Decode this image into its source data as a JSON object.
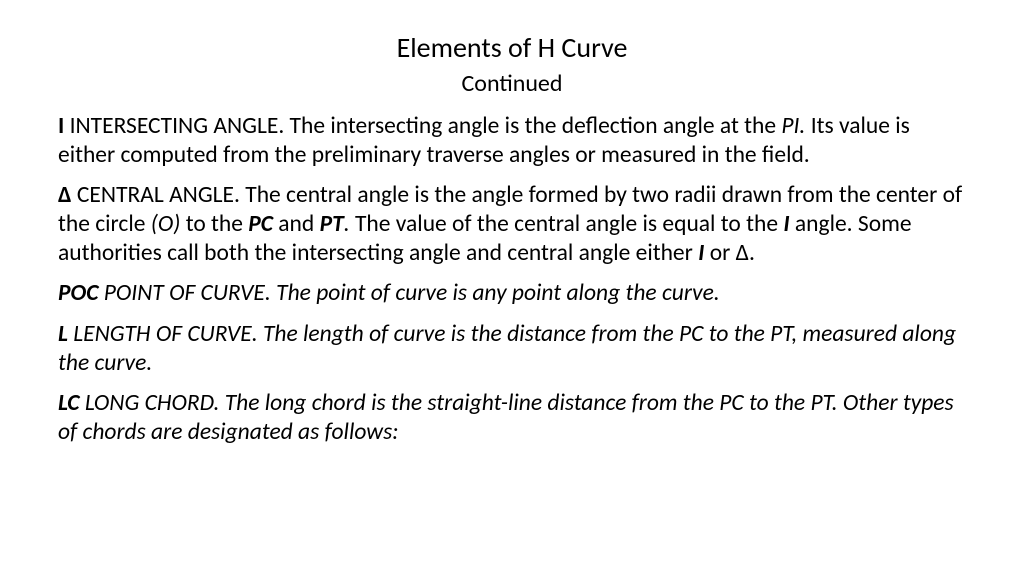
{
  "title": "Elements of H Curve",
  "subtitle": "Continued",
  "p1": {
    "term": "I",
    "t1": "  INTERSECTING ANGLE. The intersecting angle is the deflection angle at the ",
    "pi": "PI.",
    "t2": " Its value is either computed from the preliminary traverse angles or measured in the field."
  },
  "p2": {
    "term": "Δ",
    "t1": "  CENTRAL ANGLE. The central angle is the angle formed by two radii drawn from the center of the circle ",
    "o": "(O)",
    "t2": " to the ",
    "pc": "PC",
    "t3": " and ",
    "pt": "PT",
    "dot": ". ",
    "t4": "The value of the central angle is equal to the ",
    "iangle": "I",
    "t5": " angle. Some authorities call both the intersecting angle and central angle either ",
    "iangle2": "I",
    "t6": " or Δ."
  },
  "p3": {
    "term": "POC",
    "body": "    POINT OF CURVE. The point of curve is any point along the curve."
  },
  "p4": {
    "term": "L",
    "body": "      LENGTH OF CURVE. The length of curve is the distance from the PC to the PT, measured along the curve."
  },
  "p5": {
    "term": "LC",
    "body": "    LONG CHORD. The long chord is the straight-line distance from the PC to the PT. Other types of chords are designated as follows:"
  },
  "style": {
    "background": "#ffffff",
    "text_color": "#000000",
    "title_fontsize": 28,
    "subtitle_fontsize": 24,
    "body_fontsize": 23.5,
    "line_height": 1.22,
    "font_family": "Calibri"
  }
}
